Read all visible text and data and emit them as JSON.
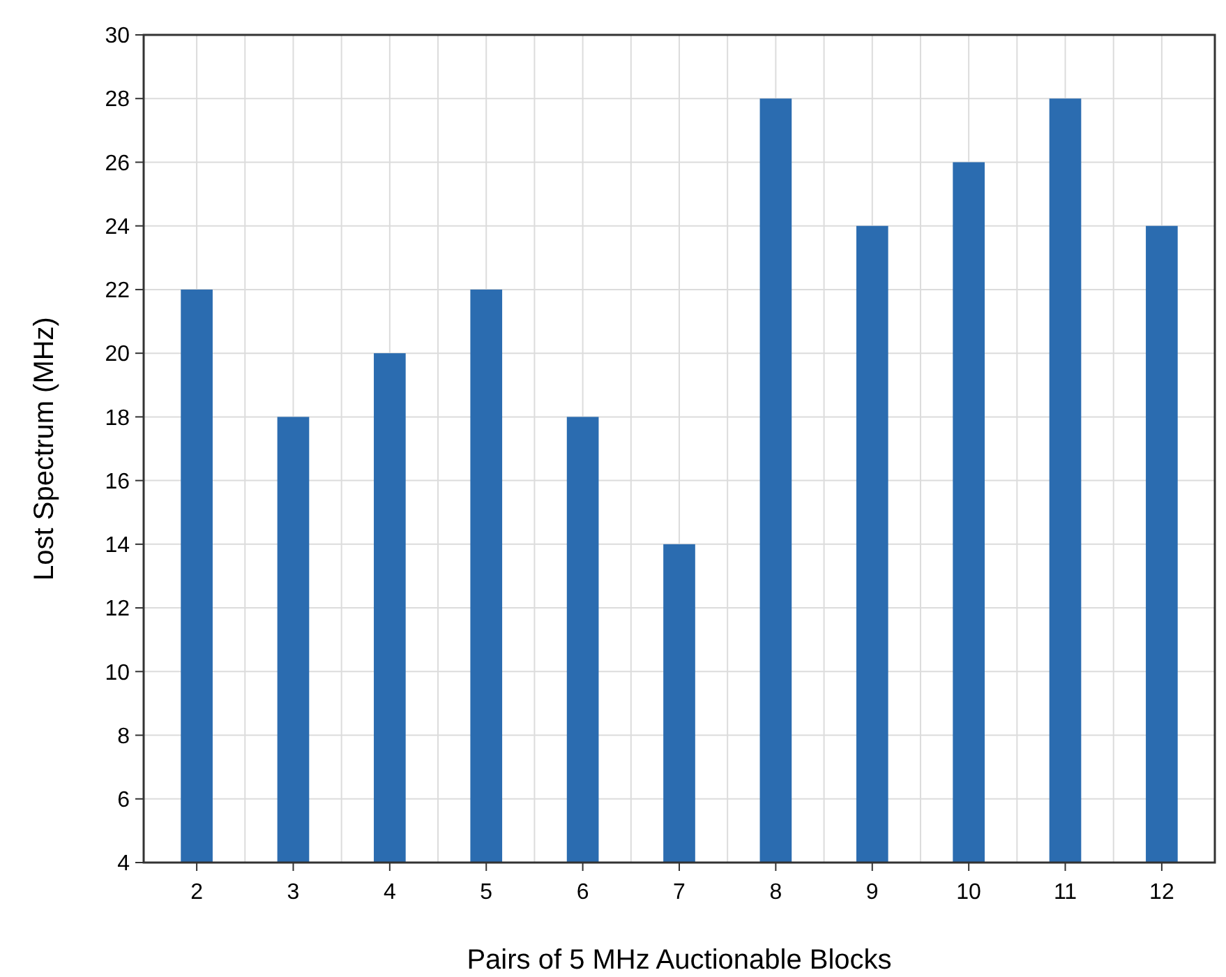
{
  "chart_data": {
    "type": "bar",
    "xlabel": "Pairs of 5 MHz Auctionable Blocks",
    "ylabel": "Lost Spectrum (MHz)",
    "categories": [
      "2",
      "3",
      "4",
      "5",
      "6",
      "7",
      "8",
      "9",
      "10",
      "11",
      "12"
    ],
    "values": [
      22,
      18,
      20,
      22,
      18,
      14,
      28,
      24,
      26,
      28,
      24
    ],
    "color": "#2b6cb0",
    "ylim": [
      4,
      30
    ],
    "yticks": [
      4,
      6,
      8,
      10,
      12,
      14,
      16,
      18,
      20,
      22,
      24,
      26,
      28,
      30
    ],
    "grid": true
  }
}
